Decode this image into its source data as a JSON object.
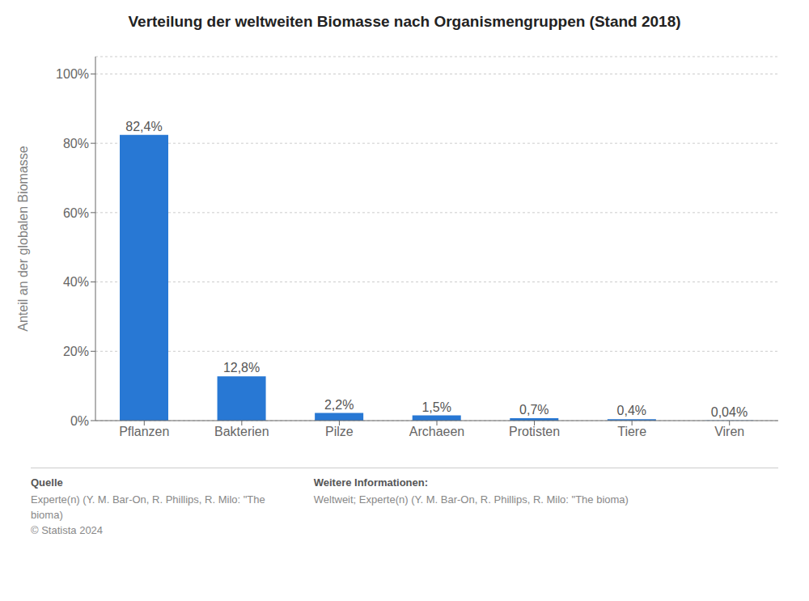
{
  "chart_data": {
    "type": "bar",
    "title": "Verteilung der weltweiten Biomasse nach Organismengruppen (Stand 2018)",
    "categories": [
      "Pflanzen",
      "Bakterien",
      "Pilze",
      "Archaeen",
      "Protisten",
      "Tiere",
      "Viren"
    ],
    "values": [
      82.4,
      12.8,
      2.2,
      1.5,
      0.7,
      0.4,
      0.04
    ],
    "value_labels": [
      "82,4%",
      "12,8%",
      "2,2%",
      "1,5%",
      "0,7%",
      "0,4%",
      "0,04%"
    ],
    "color": "#2878d4",
    "ylabel": "Anteil an der globalen Biomasse",
    "ylim": [
      0,
      105
    ],
    "yticks": [
      {
        "value": 0,
        "label": "0%"
      },
      {
        "value": 20,
        "label": "20%"
      },
      {
        "value": 40,
        "label": "40%"
      },
      {
        "value": 60,
        "label": "60%"
      },
      {
        "value": 80,
        "label": "80%"
      },
      {
        "value": 100,
        "label": "100%"
      }
    ],
    "grid": true,
    "annotations": [
      {
        "title": "Quelle",
        "lines": [
          "Experte(n) (Y. M. Bar-On, R. Phillips, R. Milo: \"The",
          "bioma)",
          "© Statista 2024"
        ]
      },
      {
        "title": "Weitere Informationen:",
        "lines": [
          "Weltweit; Experte(n) (Y. M. Bar-On, R. Phillips, R. Milo: \"The bioma)"
        ]
      }
    ]
  }
}
